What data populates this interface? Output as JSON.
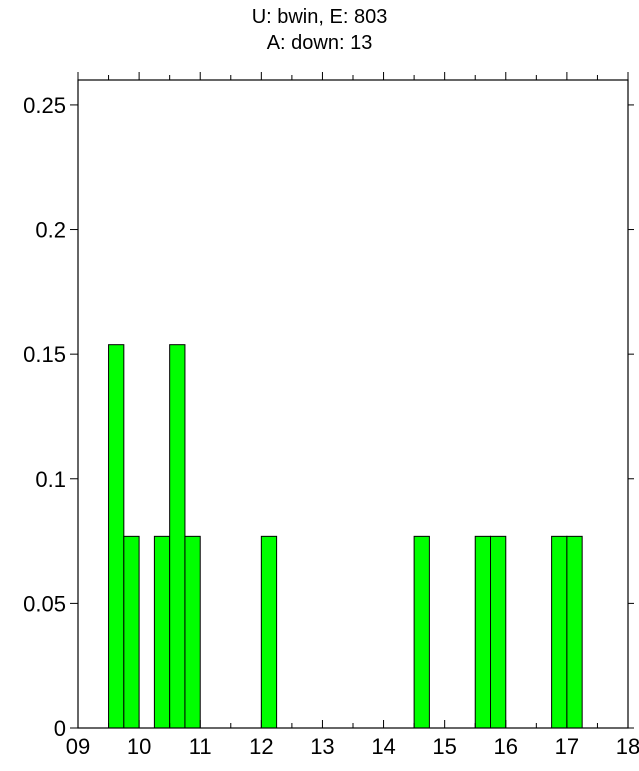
{
  "title_lines": [
    "U: bwin, E: 803",
    "A: down: 13"
  ],
  "chart_data": {
    "type": "bar",
    "title": "U: bwin, E: 803 / A: down: 13",
    "xlabel": "",
    "ylabel": "",
    "xlim": [
      9,
      18
    ],
    "ylim": [
      0,
      0.26
    ],
    "x_ticks": [
      "09",
      "10",
      "11",
      "12",
      "13",
      "14",
      "15",
      "16",
      "17",
      "18"
    ],
    "y_ticks": [
      "0",
      "0.05",
      "0.1",
      "0.15",
      "0.2",
      "0.25"
    ],
    "bin_width": 0.25,
    "bars": [
      {
        "start": 9.5,
        "value": 0.1538
      },
      {
        "start": 9.75,
        "value": 0.0769
      },
      {
        "start": 10.25,
        "value": 0.0769
      },
      {
        "start": 10.5,
        "value": 0.1538
      },
      {
        "start": 10.75,
        "value": 0.0769
      },
      {
        "start": 12.0,
        "value": 0.0769
      },
      {
        "start": 14.5,
        "value": 0.0769
      },
      {
        "start": 15.5,
        "value": 0.0769
      },
      {
        "start": 15.75,
        "value": 0.0769
      },
      {
        "start": 16.75,
        "value": 0.0769
      },
      {
        "start": 17.0,
        "value": 0.0769
      }
    ],
    "bar_color": "#00ff00",
    "grid": false,
    "legend": "none"
  }
}
